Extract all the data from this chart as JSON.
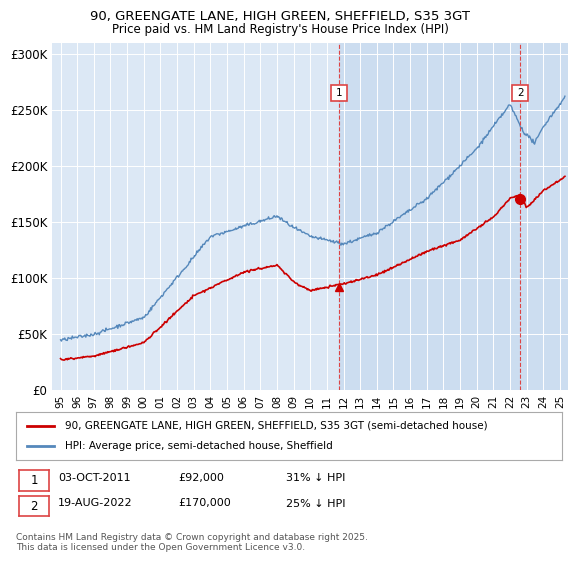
{
  "title": "90, GREENGATE LANE, HIGH GREEN, SHEFFIELD, S35 3GT",
  "subtitle": "Price paid vs. HM Land Registry's House Price Index (HPI)",
  "plot_bg_color": "#dce8f5",
  "highlight_bg_color": "#ccddf0",
  "ylabel": "",
  "xlim_start": 1994.5,
  "xlim_end": 2025.5,
  "ylim_min": 0,
  "ylim_max": 310000,
  "yticks": [
    0,
    50000,
    100000,
    150000,
    200000,
    250000,
    300000
  ],
  "ytick_labels": [
    "£0",
    "£50K",
    "£100K",
    "£150K",
    "£200K",
    "£250K",
    "£300K"
  ],
  "legend_label_red": "90, GREENGATE LANE, HIGH GREEN, SHEFFIELD, S35 3GT (semi-detached house)",
  "legend_label_blue": "HPI: Average price, semi-detached house, Sheffield",
  "marker1_x": 2011.75,
  "marker1_y": 92000,
  "marker1_label": "1",
  "marker1_date": "03-OCT-2011",
  "marker1_price": "£92,000",
  "marker1_hpi": "31% ↓ HPI",
  "marker2_x": 2022.62,
  "marker2_y": 170000,
  "marker2_label": "2",
  "marker2_date": "19-AUG-2022",
  "marker2_price": "£170,000",
  "marker2_hpi": "25% ↓ HPI",
  "vline1_x": 2011.75,
  "vline2_x": 2022.62,
  "footer": "Contains HM Land Registry data © Crown copyright and database right 2025.\nThis data is licensed under the Open Government Licence v3.0.",
  "red_color": "#cc0000",
  "blue_color": "#5588bb",
  "vline_color": "#dd4444"
}
